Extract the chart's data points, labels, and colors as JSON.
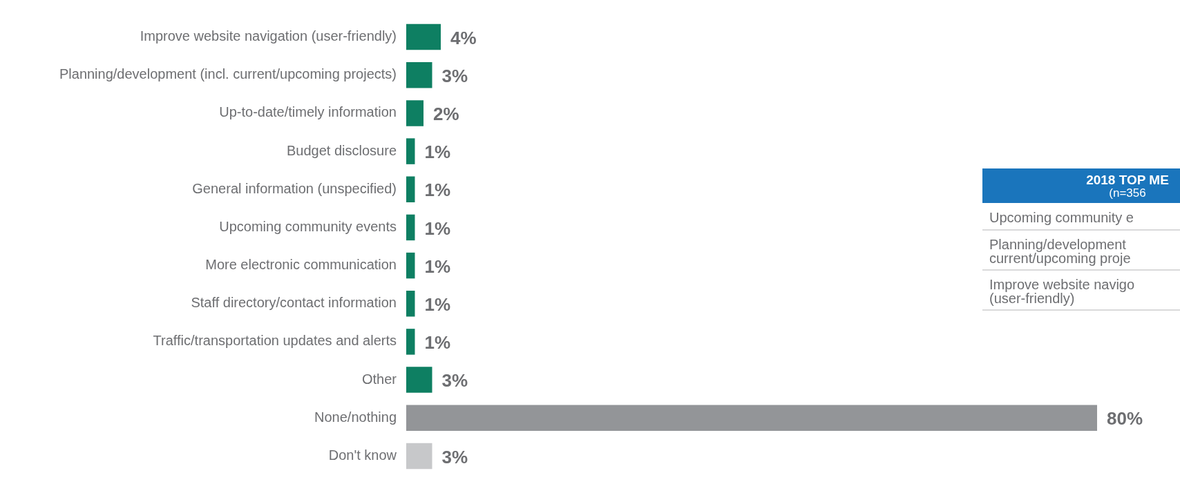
{
  "chart_data": [
    {
      "type": "bar",
      "orientation": "horizontal",
      "categories": [
        "Improve website navigation (user-friendly)",
        "Planning/development (incl. current/upcoming projects)",
        "Up-to-date/timely information",
        "Budget disclosure",
        "General information (unspecified)",
        "Upcoming community events",
        "More electronic communication",
        "Staff directory/contact information",
        "Traffic/transportation updates and alerts",
        "Other",
        "None/nothing",
        "Don't know"
      ],
      "values": [
        4,
        3,
        2,
        1,
        1,
        1,
        1,
        1,
        1,
        3,
        80,
        3
      ],
      "colors": [
        "#0e7f62",
        "#0e7f62",
        "#0e7f62",
        "#0e7f62",
        "#0e7f62",
        "#0e7f62",
        "#0e7f62",
        "#0e7f62",
        "#0e7f62",
        "#0e7f62",
        "#939598",
        "#c7c8ca"
      ],
      "value_labels": [
        "4%",
        "3%",
        "2%",
        "1%",
        "1%",
        "1%",
        "1%",
        "1%",
        "1%",
        "3%",
        "80%",
        "3%"
      ]
    },
    {
      "type": "other",
      "title": "2018 TOP ME",
      "subtitle": "(n=356",
      "annotations": [
        "Upcoming community e",
        "Planning/development\ncurrent/upcoming proje",
        "Improve website navigo\n(user-friendly)"
      ]
    }
  ]
}
